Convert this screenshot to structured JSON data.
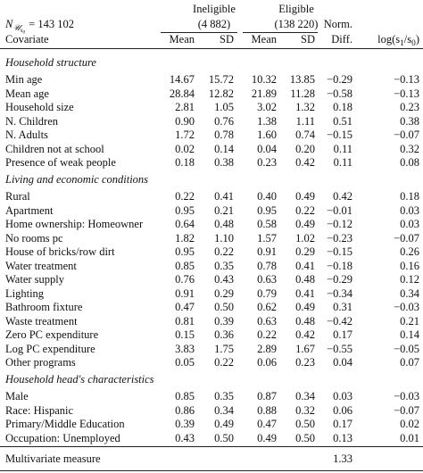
{
  "header": {
    "n_label": {
      "symbol": "N",
      "sub": "𝒰",
      "subsub": "s",
      "subsubsub": "0",
      "value": "= 143 102"
    },
    "groups": [
      {
        "label": "Ineligible",
        "count": "(4 882)"
      },
      {
        "label": "Eligible",
        "count": "(138 220)"
      }
    ],
    "norm": [
      "Norm.",
      "Diff."
    ],
    "columns": [
      "Covariate",
      "Mean",
      "SD",
      "Mean",
      "SD"
    ],
    "log": {
      "a": "log(s",
      "b": "1",
      "c": "/s",
      "d": "0",
      "e": ")"
    }
  },
  "sections": [
    {
      "title": "Household structure",
      "rows": [
        [
          "Min age",
          "14.67",
          "15.72",
          "10.32",
          "13.85",
          "−0.29",
          "−0.13"
        ],
        [
          "Mean age",
          "28.84",
          "12.82",
          "21.89",
          "11.28",
          "−0.58",
          "−0.13"
        ],
        [
          "Household size",
          "2.81",
          "1.05",
          "3.02",
          "1.32",
          "0.18",
          "0.23"
        ],
        [
          "N. Children",
          "0.90",
          "0.76",
          "1.38",
          "1.11",
          "0.51",
          "0.38"
        ],
        [
          "N. Adults",
          "1.72",
          "0.78",
          "1.60",
          "0.74",
          "−0.15",
          "−0.07"
        ],
        [
          "Children not at school",
          "0.02",
          "0.14",
          "0.04",
          "0.20",
          "0.11",
          "0.32"
        ],
        [
          "Presence of weak people",
          "0.18",
          "0.38",
          "0.23",
          "0.42",
          "0.11",
          "0.08"
        ]
      ]
    },
    {
      "title": "Living and economic conditions",
      "rows": [
        [
          "Rural",
          "0.22",
          "0.41",
          "0.40",
          "0.49",
          "0.42",
          "0.18"
        ],
        [
          "Apartment",
          "0.95",
          "0.21",
          "0.95",
          "0.22",
          "−0.01",
          "0.03"
        ],
        [
          "Home ownership: Homeowner",
          "0.64",
          "0.48",
          "0.58",
          "0.49",
          "−0.12",
          "0.03"
        ],
        [
          "No rooms pc",
          "1.82",
          "1.10",
          "1.57",
          "1.02",
          "−0.23",
          "−0.07"
        ],
        [
          "House of bricks/row dirt",
          "0.95",
          "0.22",
          "0.91",
          "0.29",
          "−0.15",
          "0.26"
        ],
        [
          "Water treatment",
          "0.85",
          "0.35",
          "0.78",
          "0.41",
          "−0.18",
          "0.16"
        ],
        [
          "Water supply",
          "0.76",
          "0.43",
          "0.63",
          "0.48",
          "−0.29",
          "0.12"
        ],
        [
          "Lighting",
          "0.91",
          "0.29",
          "0.79",
          "0.41",
          "−0.34",
          "0.34"
        ],
        [
          "Bathroom fixture",
          "0.47",
          "0.50",
          "0.62",
          "0.49",
          "0.31",
          "−0.03"
        ],
        [
          "Waste treatment",
          "0.81",
          "0.39",
          "0.63",
          "0.48",
          "−0.42",
          "0.21"
        ],
        [
          "Zero PC expenditure",
          "0.15",
          "0.36",
          "0.22",
          "0.42",
          "0.17",
          "0.14"
        ],
        [
          "Log PC expenditure",
          "3.83",
          "1.75",
          "2.89",
          "1.67",
          "−0.55",
          "−0.05"
        ],
        [
          "Other programs",
          "0.05",
          "0.22",
          "0.06",
          "0.23",
          "0.04",
          "0.07"
        ]
      ]
    },
    {
      "title": "Household head's characteristics",
      "rows": [
        [
          "Male",
          "0.85",
          "0.35",
          "0.87",
          "0.34",
          "0.03",
          "−0.03"
        ],
        [
          "Race: Hispanic",
          "0.86",
          "0.34",
          "0.88",
          "0.32",
          "0.06",
          "−0.07"
        ],
        [
          "Primary/Middle Education",
          "0.39",
          "0.49",
          "0.47",
          "0.50",
          "0.17",
          "0.02"
        ],
        [
          "Occupation: Unemployed",
          "0.43",
          "0.50",
          "0.49",
          "0.50",
          "0.13",
          "0.01"
        ]
      ]
    }
  ],
  "multivariate": {
    "label": "Multivariate measure",
    "value": "1.33"
  }
}
